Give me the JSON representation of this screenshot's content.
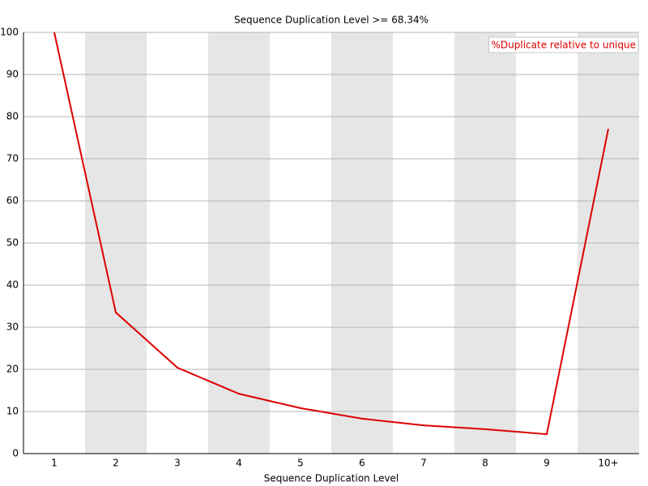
{
  "chart_data": {
    "type": "line",
    "title": "Sequence Duplication Level >= 68.34%",
    "x_label": "Sequence Duplication Level",
    "categories": [
      "1",
      "2",
      "3",
      "4",
      "5",
      "6",
      "7",
      "8",
      "9",
      "10+"
    ],
    "series": [
      {
        "name": "%Duplicate relative to unique",
        "color": "#dd0000",
        "values": [
          100,
          33.5,
          20.4,
          14.2,
          10.8,
          8.3,
          6.7,
          5.8,
          4.6,
          77.1
        ]
      }
    ],
    "ylim": [
      0,
      100
    ],
    "yticks": [
      0,
      10,
      20,
      30,
      40,
      50,
      60,
      70,
      80,
      90,
      100
    ],
    "grid": true,
    "legend": "upper right"
  }
}
